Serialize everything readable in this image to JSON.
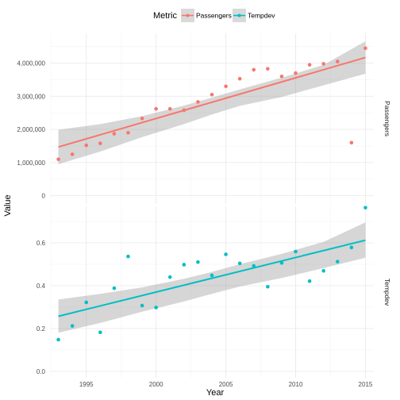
{
  "chart_data": {
    "type": "scatter",
    "facet": "rows",
    "xlabel": "Year",
    "ylabel": "Value",
    "legend": {
      "title": "Metric",
      "position": "top",
      "entries": [
        "Passengers",
        "Tempdev"
      ]
    },
    "grid": true,
    "smoother": "linear fit with confidence band",
    "x_ticks": [
      1995,
      2000,
      2005,
      2010,
      2015
    ],
    "xlim": [
      1992.4,
      2015.6
    ],
    "colors": {
      "Passengers": "#F8766D",
      "Tempdev": "#00BFC4",
      "band": "#999999"
    },
    "panels": [
      {
        "strip": "Passengers",
        "series": "Passengers",
        "ylim": [
          -250000,
          4900000
        ],
        "y_ticks": [
          0,
          1000000,
          2000000,
          3000000,
          4000000
        ],
        "y_tick_labels": [
          "0",
          "1,000,000",
          "2,000,000",
          "3,000,000",
          "4,000,000"
        ],
        "points": {
          "x": [
            1993,
            1994,
            1995,
            1996,
            1997,
            1998,
            1999,
            2000,
            2001,
            2002,
            2003,
            2004,
            2005,
            2006,
            2007,
            2008,
            2009,
            2010,
            2011,
            2012,
            2013,
            2014,
            2015
          ],
          "y": [
            1100000,
            1250000,
            1520000,
            1580000,
            1870000,
            1900000,
            2330000,
            2620000,
            2620000,
            2580000,
            2830000,
            3050000,
            3300000,
            3530000,
            3800000,
            3830000,
            3600000,
            3700000,
            3950000,
            3980000,
            4050000,
            1600000,
            4450000
          ]
        },
        "fit": {
          "x": [
            1993,
            2015
          ],
          "y": [
            1470000,
            4170000
          ]
        },
        "band": {
          "x": [
            1993,
            1996,
            1999,
            2002,
            2004,
            2006,
            2009,
            2012,
            2015
          ],
          "upper": [
            1990000,
            2160000,
            2400000,
            2720000,
            2960000,
            3210000,
            3560000,
            3950000,
            4660000
          ],
          "lower": [
            950000,
            1330000,
            1770000,
            2160000,
            2450000,
            2710000,
            2980000,
            3330000,
            3680000
          ]
        }
      },
      {
        "strip": "Tempdev",
        "series": "Tempdev",
        "ylim": [
          -0.03,
          0.77
        ],
        "y_ticks": [
          0.0,
          0.2,
          0.4,
          0.6
        ],
        "y_tick_labels": [
          "0.0",
          "0.2",
          "0.4",
          "0.6"
        ],
        "points": {
          "x": [
            1993,
            1994,
            1995,
            1996,
            1997,
            1998,
            1999,
            2000,
            2001,
            2002,
            2003,
            2004,
            2005,
            2006,
            2007,
            2008,
            2009,
            2010,
            2011,
            2012,
            2013,
            2014,
            2015
          ],
          "y": [
            0.148,
            0.212,
            0.322,
            0.182,
            0.388,
            0.536,
            0.307,
            0.298,
            0.44,
            0.498,
            0.51,
            0.448,
            0.546,
            0.504,
            0.492,
            0.395,
            0.506,
            0.559,
            0.421,
            0.469,
            0.512,
            0.578,
            0.764
          ]
        },
        "fit": {
          "x": [
            1993,
            2015
          ],
          "y": [
            0.257,
            0.612
          ]
        },
        "band": {
          "x": [
            1993,
            1996,
            1999,
            2002,
            2004,
            2006,
            2009,
            2012,
            2015
          ],
          "upper": [
            0.335,
            0.362,
            0.392,
            0.432,
            0.464,
            0.5,
            0.548,
            0.604,
            0.695
          ],
          "lower": [
            0.18,
            0.226,
            0.278,
            0.326,
            0.362,
            0.396,
            0.436,
            0.482,
            0.53
          ]
        }
      }
    ]
  }
}
